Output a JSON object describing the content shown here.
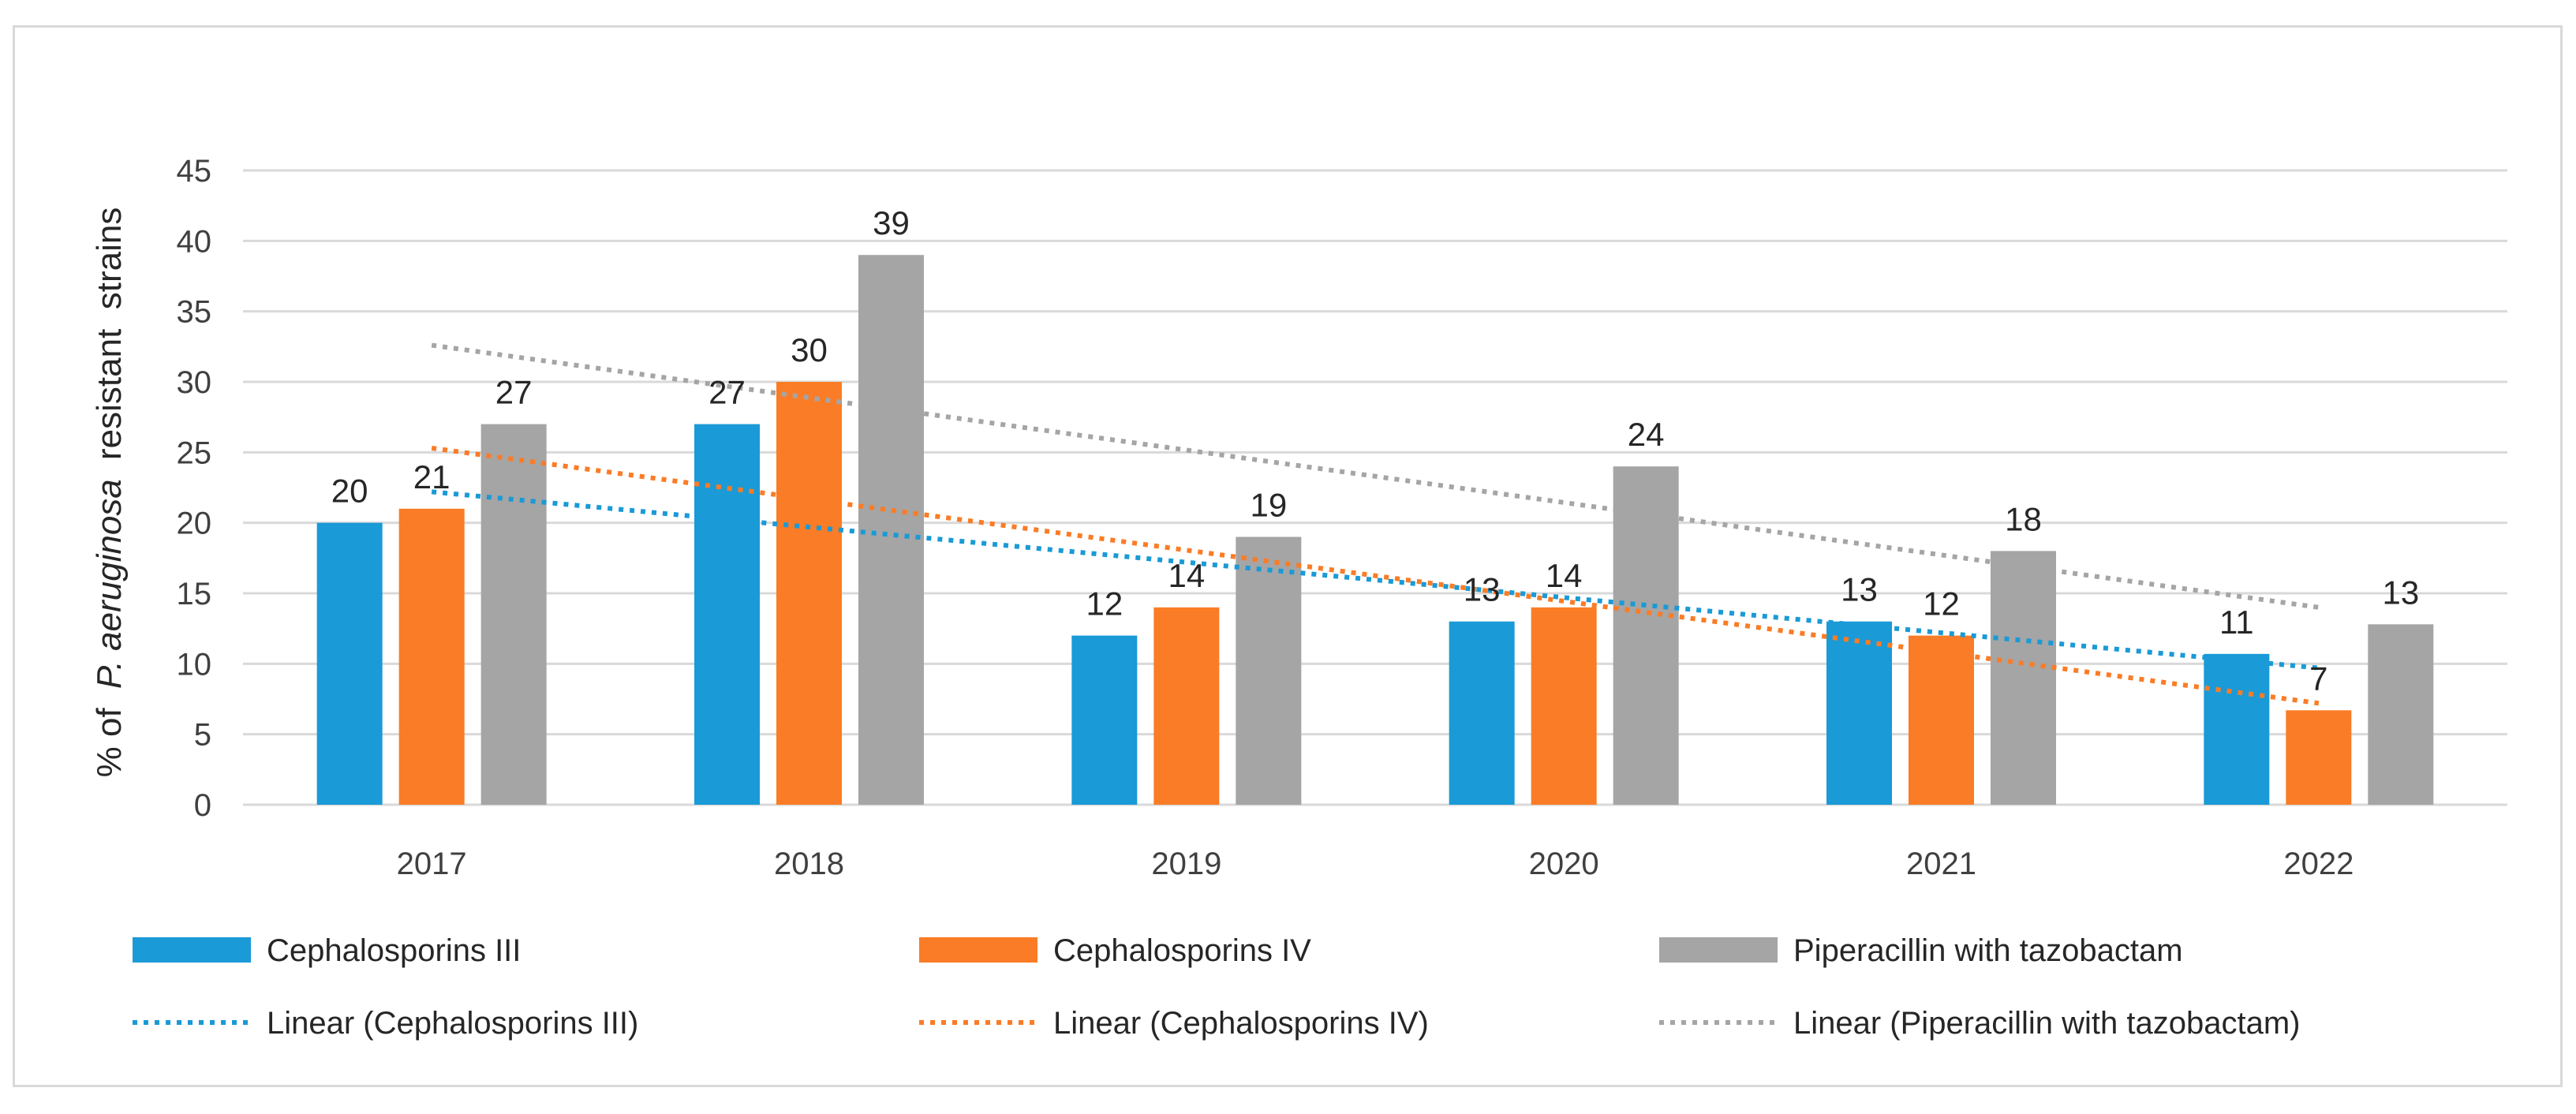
{
  "chart_data": {
    "type": "bar",
    "title": "",
    "xlabel": "",
    "ylabel_prefix": "% of",
    "ylabel_italic": "P. aeruginosa",
    "ylabel_suffix": "resistant  strains",
    "ylim": [
      0,
      45
    ],
    "ytick_step": 5,
    "ytick_labels": [
      "0",
      "5",
      "10",
      "15",
      "20",
      "25",
      "30",
      "35",
      "40",
      "45"
    ],
    "grid": true,
    "legend_position": "bottom",
    "categories": [
      "2017",
      "2018",
      "2019",
      "2020",
      "2021",
      "2022"
    ],
    "series": [
      {
        "name": "Cephalosporins III",
        "color": "#1a9ad6",
        "values": [
          20,
          27,
          12,
          13,
          13,
          10.7
        ],
        "labels": [
          "20",
          "27",
          "12",
          "13",
          "13",
          "11"
        ]
      },
      {
        "name": "Cephalosporins IV",
        "color": "#fa7c26",
        "values": [
          21,
          30,
          14,
          14,
          12,
          6.7
        ],
        "labels": [
          "21",
          "30",
          "14",
          "14",
          "12",
          "7"
        ]
      },
      {
        "name": "Piperacillin with tazobactam",
        "color": "#a5a5a5",
        "values": [
          27,
          39,
          19,
          24,
          18,
          12.8
        ],
        "labels": [
          "27",
          "39",
          "19",
          "24",
          "18",
          "13"
        ]
      }
    ],
    "trendlines": [
      {
        "name": "Linear (Cephalosporins III)",
        "color": "#1a9ad6",
        "start": 22.2,
        "end": 9.7
      },
      {
        "name": "Linear (Cephalosporins IV)",
        "color": "#fa7c26",
        "start": 25.3,
        "end": 7.2
      },
      {
        "name": "Linear (Piperacillin with tazobactam)",
        "color": "#a5a5a5",
        "start": 32.6,
        "end": 14.0
      }
    ]
  }
}
